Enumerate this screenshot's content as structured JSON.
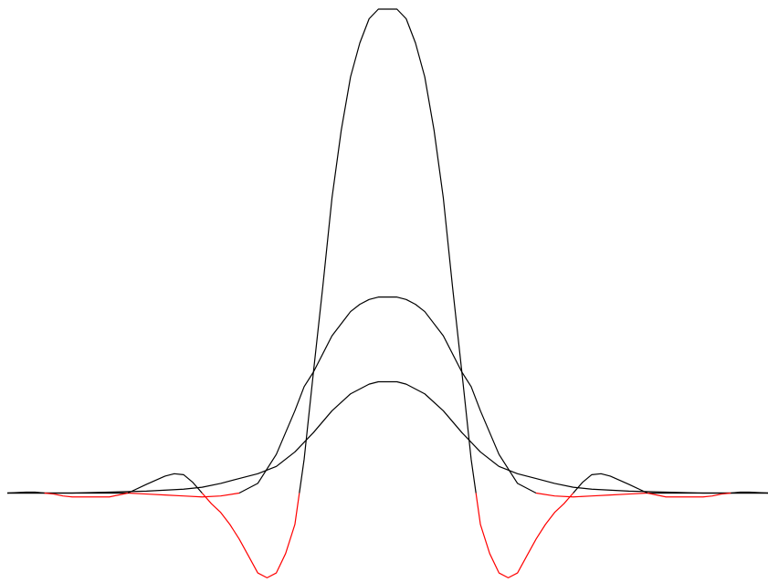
{
  "chart_data": {
    "type": "line",
    "title": "",
    "xlabel": "",
    "ylabel": "",
    "xlim": [
      -41,
      41
    ],
    "ylim": [
      -0.18,
      1.0
    ],
    "grid": false,
    "legend": "none",
    "negative_color": "#ff0000",
    "series": [
      {
        "color": "#000000",
        "x": [
          -41,
          -38,
          -36,
          -34,
          -30,
          -26,
          -22,
          -20,
          -18,
          -16,
          -14,
          -12,
          -10,
          -8,
          -6,
          -4,
          -2,
          -1,
          0,
          1,
          2,
          4,
          6,
          8,
          10,
          12,
          14,
          16,
          18,
          20,
          22,
          26,
          30,
          34,
          36,
          38,
          41
        ],
        "y": [
          0.0,
          0.0,
          0.0,
          0.0,
          0.002,
          0.004,
          0.008,
          0.012,
          0.02,
          0.03,
          0.04,
          0.055,
          0.085,
          0.125,
          0.17,
          0.205,
          0.225,
          0.23,
          0.23,
          0.23,
          0.225,
          0.205,
          0.17,
          0.125,
          0.085,
          0.055,
          0.04,
          0.03,
          0.02,
          0.012,
          0.008,
          0.004,
          0.002,
          0.0,
          0.0,
          0.0,
          0.0
        ]
      },
      {
        "color": "#000000",
        "x": [
          -41,
          -36,
          -34,
          -30,
          -28,
          -26,
          -24,
          -22,
          -20,
          -18,
          -16,
          -14,
          -12,
          -10,
          -9,
          -8,
          -6,
          -4,
          -3,
          -2,
          -1,
          0,
          1,
          2,
          3,
          4,
          6,
          8,
          9,
          10,
          12,
          14,
          16,
          18,
          20,
          22,
          24,
          26,
          28,
          30,
          34,
          36,
          41
        ],
        "y": [
          0.0,
          0.0,
          0.0,
          0.0,
          0.0,
          -0.002,
          -0.004,
          -0.006,
          -0.008,
          -0.006,
          0.0,
          0.02,
          0.08,
          0.17,
          0.22,
          0.25,
          0.325,
          0.375,
          0.39,
          0.4,
          0.405,
          0.405,
          0.405,
          0.4,
          0.39,
          0.375,
          0.325,
          0.25,
          0.22,
          0.17,
          0.08,
          0.02,
          0.0,
          -0.006,
          -0.008,
          -0.006,
          -0.004,
          -0.002,
          0.0,
          0.0,
          0.0,
          0.0,
          0.0
        ]
      },
      {
        "color": "#000000",
        "x": [
          -41,
          -39,
          -38,
          -37,
          -36,
          -35,
          -34,
          -32,
          -30,
          -28,
          -26,
          -24,
          -23,
          -22,
          -21,
          -20,
          -19,
          -18,
          -17,
          -16,
          -15,
          -14,
          -13,
          -12,
          -11,
          -10,
          -9,
          -8,
          -7,
          -6,
          -5,
          -4,
          -3,
          -2,
          -1,
          0,
          1,
          2,
          3,
          4,
          5,
          6,
          7,
          8,
          9,
          10,
          11,
          12,
          13,
          14,
          15,
          16,
          17,
          18,
          19,
          20,
          21,
          22,
          23,
          24,
          26,
          28,
          30,
          32,
          34,
          35,
          36,
          37,
          38,
          39,
          41
        ],
        "y": [
          0.0,
          0.002,
          0.002,
          0.0,
          -0.002,
          -0.006,
          -0.008,
          -0.008,
          -0.008,
          0.0,
          0.018,
          0.035,
          0.04,
          0.038,
          0.022,
          0.0,
          -0.022,
          -0.04,
          -0.065,
          -0.095,
          -0.13,
          -0.165,
          -0.175,
          -0.165,
          -0.125,
          -0.065,
          0.07,
          0.25,
          0.425,
          0.61,
          0.75,
          0.86,
          0.93,
          0.98,
          1.0,
          1.0,
          1.0,
          0.98,
          0.93,
          0.86,
          0.75,
          0.61,
          0.425,
          0.25,
          0.07,
          -0.065,
          -0.125,
          -0.165,
          -0.175,
          -0.165,
          -0.13,
          -0.095,
          -0.065,
          -0.04,
          -0.022,
          0.0,
          0.022,
          0.038,
          0.04,
          0.035,
          0.018,
          0.0,
          -0.008,
          -0.008,
          -0.008,
          -0.006,
          -0.002,
          0.0,
          0.002,
          0.002,
          0.0
        ]
      }
    ]
  }
}
